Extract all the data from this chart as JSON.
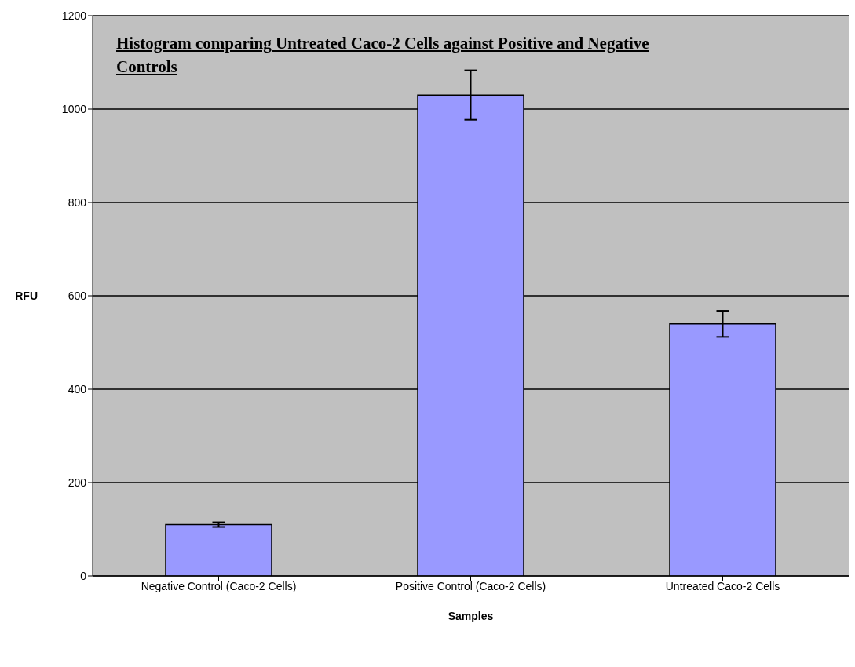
{
  "chart_data": {
    "type": "bar",
    "title": "Histogram comparing Untreated Caco-2 Cells against Positive and Negative Controls",
    "xlabel": "Samples",
    "ylabel": "RFU",
    "categories": [
      "Negative Control (Caco-2 Cells)",
      "Positive Control (Caco-2 Cells)",
      "Untreated Caco-2 Cells"
    ],
    "values": [
      110,
      1030,
      540
    ],
    "errors": [
      5,
      53,
      28
    ],
    "color": "#9999ff",
    "ylim": [
      0,
      1200
    ],
    "yticks": [
      0,
      200,
      400,
      600,
      800,
      1000,
      1200
    ],
    "grid": "y"
  }
}
